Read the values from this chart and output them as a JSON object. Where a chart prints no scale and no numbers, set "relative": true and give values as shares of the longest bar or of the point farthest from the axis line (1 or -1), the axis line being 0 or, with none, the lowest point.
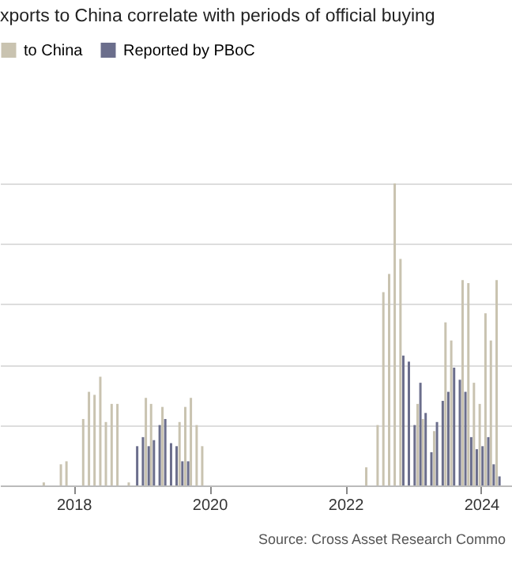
{
  "chart_data": {
    "type": "bar",
    "title": "xports to China correlate with periods of official buying",
    "relative": true,
    "grid": "y",
    "legend": "top",
    "xlim": [
      "2016-12-01",
      "2024-06-15"
    ],
    "xticks": [
      {
        "value": "2018-01-01",
        "label": "2018"
      },
      {
        "value": "2020-01-01",
        "label": "2020"
      },
      {
        "value": "2022-01-01",
        "label": "2022"
      },
      {
        "value": "2024-01-01",
        "label": "2024"
      }
    ],
    "series": [
      {
        "name": "to China",
        "color": "#c9c3b0",
        "x": [
          "2017-08",
          "2017-11",
          "2017-12",
          "2018-03",
          "2018-04",
          "2018-05",
          "2018-06",
          "2018-07",
          "2018-08",
          "2018-09",
          "2018-11",
          "2019-02",
          "2019-03",
          "2019-05",
          "2019-08",
          "2019-09",
          "2019-10",
          "2019-11",
          "2019-12",
          "2022-05",
          "2022-07",
          "2022-08",
          "2022-09",
          "2022-10",
          "2022-11",
          "2023-02",
          "2023-03",
          "2023-05",
          "2023-07",
          "2023-08",
          "2023-10",
          "2023-11",
          "2023-12",
          "2024-01",
          "2024-02",
          "2024-03",
          "2024-04"
        ],
        "values": [
          0.01,
          0.07,
          0.08,
          0.22,
          0.31,
          0.3,
          0.36,
          0.21,
          0.27,
          0.27,
          0.01,
          0.29,
          0.27,
          0.26,
          0.21,
          0.26,
          0.29,
          0.2,
          0.13,
          0.06,
          0.2,
          0.64,
          0.7,
          1,
          0.75,
          0.27,
          0.22,
          0.18,
          0.54,
          0.48,
          0.68,
          0.67,
          0.34,
          0.27,
          0.57,
          0.48,
          0.68
        ]
      },
      {
        "name": "Reported by PBoC",
        "color": "#6b6e8c",
        "x": [
          "2018-12",
          "2019-01",
          "2019-02",
          "2019-03",
          "2019-04",
          "2019-05",
          "2019-06",
          "2019-07",
          "2019-08",
          "2019-09",
          "2022-11",
          "2022-12",
          "2023-01",
          "2023-02",
          "2023-03",
          "2023-04",
          "2023-05",
          "2023-06",
          "2023-07",
          "2023-08",
          "2023-09",
          "2023-10",
          "2023-11",
          "2023-12",
          "2024-01",
          "2024-02",
          "2024-03",
          "2024-04"
        ],
        "values": [
          0.13,
          0.16,
          0.13,
          0.15,
          0.2,
          0.22,
          0.14,
          0.13,
          0.08,
          0.08,
          0.43,
          0.41,
          0.2,
          0.34,
          0.24,
          0.11,
          0.21,
          0.28,
          0.31,
          0.39,
          0.35,
          0.31,
          0.16,
          0.12,
          0.13,
          0.16,
          0.07,
          0.03
        ]
      }
    ],
    "annotations": [
      "Source: Cross Asset Research Commo"
    ]
  }
}
